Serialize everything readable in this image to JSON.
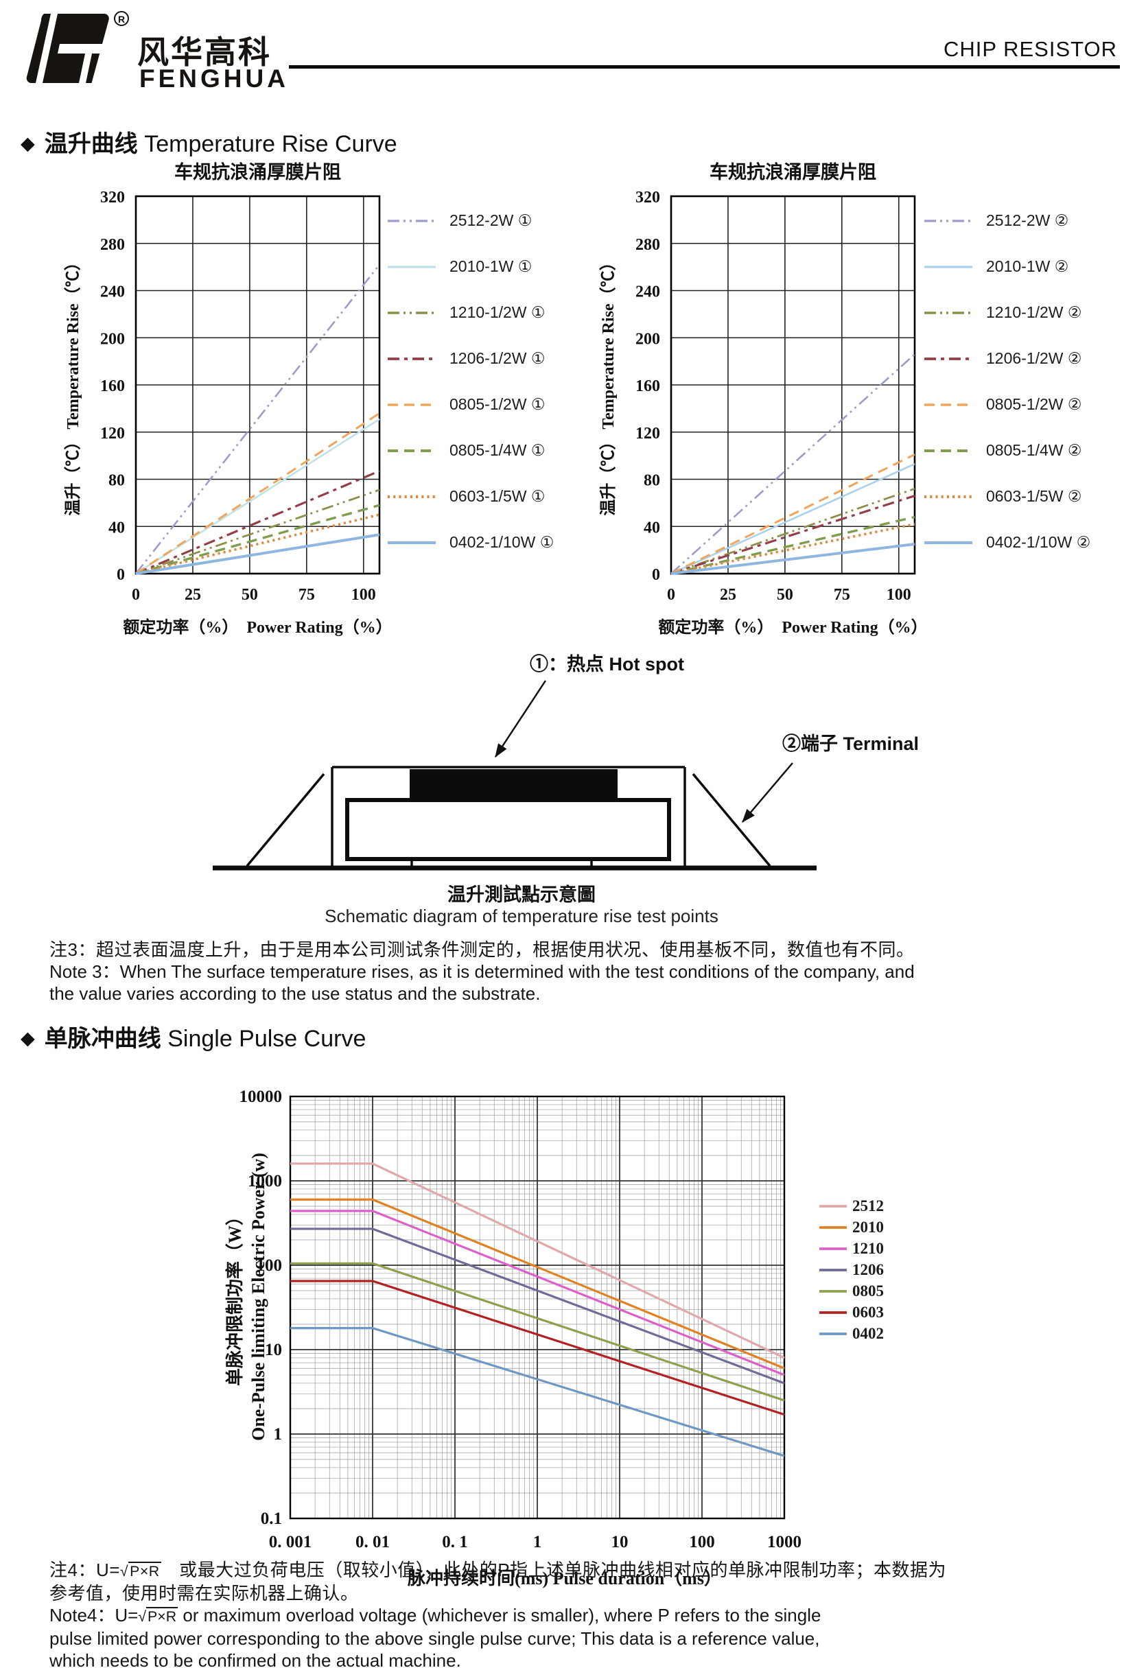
{
  "header": {
    "brand_cn": "风华高科",
    "brand_en": "FENGHUA",
    "registered": "®",
    "page_title": "CHIP RESISTOR"
  },
  "sections": {
    "s1_bullet": "◆",
    "s1_cn": "温升曲线",
    "s1_en": " Temperature Rise Curve",
    "s2_bullet": "◆",
    "s2_cn": "单脉冲曲线",
    "s2_en": " Single Pulse Curve"
  },
  "schematic": {
    "hotspot_label": "①：热点  Hot spot",
    "terminal_label": "②端子 Terminal",
    "caption_cn": "温升測試點示意圖",
    "caption_en": "Schematic diagram of temperature rise test points"
  },
  "notes": {
    "note3_cn": "注3：超过表面温度上升，由于是用本公司测试条件测定的，根据使用状况、使用基板不同，数值也有不同。",
    "note3_en_1": "Note 3：When The surface temperature rises, as it is determined with the test conditions of the company, and",
    "note3_en_2": "the value varies according to the use status and the substrate.",
    "note4_cn_1a": "注4：U=",
    "note4_sqrt": "P×R",
    "note4_cn_1b": "　或最大过负荷电压（取较小值），此处的P指上述单脉冲曲线相对应的单脉冲限制功率；本数据为",
    "note4_cn_2": "参考值，使用时需在实际机器上确认。",
    "note4_en_1a": "Note4：U=",
    "note4_en_1b": " or maximum overload voltage (whichever is smaller), where P refers to the single",
    "note4_en_2": "pulse limited power corresponding to the above single pulse curve; This data is a reference value,",
    "note4_en_3": "which needs to be confirmed on the actual machine."
  },
  "chart_data": [
    {
      "type": "line",
      "title": "车规抗浪涌厚膜片阻",
      "xlabel": "额定功率（%）　Power Rating（%）",
      "ylabel": "温升（℃）  Temperature Rise（℃）",
      "xlim": [
        0,
        107
      ],
      "ylim": [
        0,
        320
      ],
      "xticks": [
        0,
        25,
        50,
        75,
        100
      ],
      "yticks": [
        0,
        40,
        80,
        120,
        160,
        200,
        240,
        280,
        320
      ],
      "grid": true,
      "legend_position": "right",
      "series": [
        {
          "name": "2512-2W ①",
          "color": "#9c9ccb",
          "style": "dashdotdot",
          "width": 2.6,
          "x": [
            0,
            107
          ],
          "y": [
            0,
            262
          ]
        },
        {
          "name": "2010-1W ①",
          "color": "#bfe3e6",
          "style": "solid",
          "width": 2.6,
          "x": [
            0,
            107
          ],
          "y": [
            0,
            131
          ]
        },
        {
          "name": "1210-1/2W ①",
          "color": "#8e8e4a",
          "style": "dashdotdot",
          "width": 2.8,
          "x": [
            0,
            107
          ],
          "y": [
            0,
            71
          ]
        },
        {
          "name": "1206-1/2W ①",
          "color": "#943f48",
          "style": "dashdot",
          "width": 3.2,
          "x": [
            0,
            107
          ],
          "y": [
            0,
            87
          ]
        },
        {
          "name": "0805-1/2W ①",
          "color": "#f0a55c",
          "style": "dash",
          "width": 3.0,
          "x": [
            0,
            107
          ],
          "y": [
            0,
            136
          ]
        },
        {
          "name": "0805-1/4W ①",
          "color": "#7f9e4d",
          "style": "dash",
          "width": 3.4,
          "x": [
            0,
            107
          ],
          "y": [
            0,
            58
          ]
        },
        {
          "name": "0603-1/5W ①",
          "color": "#e18a3e",
          "style": "dot",
          "width": 3.6,
          "x": [
            0,
            107
          ],
          "y": [
            0,
            50
          ]
        },
        {
          "name": "0402-1/10W ①",
          "color": "#8db6e0",
          "style": "solid",
          "width": 4.0,
          "x": [
            0,
            107
          ],
          "y": [
            0,
            33
          ]
        }
      ]
    },
    {
      "type": "line",
      "title": "车规抗浪涌厚膜片阻",
      "xlabel": "额定功率（%）　Power Rating（%）",
      "ylabel": "温升（℃）  Temperature Rise（℃）",
      "xlim": [
        0,
        107
      ],
      "ylim": [
        0,
        320
      ],
      "xticks": [
        0,
        25,
        50,
        75,
        100
      ],
      "yticks": [
        0,
        40,
        80,
        120,
        160,
        200,
        240,
        280,
        320
      ],
      "grid": true,
      "legend_position": "right",
      "series": [
        {
          "name": "2512-2W ②",
          "color": "#9c9ccb",
          "style": "dashdotdot",
          "width": 2.6,
          "x": [
            0,
            107
          ],
          "y": [
            0,
            186
          ]
        },
        {
          "name": "2010-1W ②",
          "color": "#a9d3ed",
          "style": "solid",
          "width": 2.6,
          "x": [
            0,
            107
          ],
          "y": [
            0,
            93
          ]
        },
        {
          "name": "1210-1/2W ②",
          "color": "#8e8e4a",
          "style": "dashdotdot",
          "width": 2.8,
          "x": [
            0,
            107
          ],
          "y": [
            0,
            72
          ]
        },
        {
          "name": "1206-1/2W ②",
          "color": "#943f48",
          "style": "dashdot",
          "width": 3.2,
          "x": [
            0,
            107
          ],
          "y": [
            0,
            66
          ]
        },
        {
          "name": "0805-1/2W ②",
          "color": "#f0a55c",
          "style": "dash",
          "width": 3.0,
          "x": [
            0,
            107
          ],
          "y": [
            0,
            101
          ]
        },
        {
          "name": "0805-1/4W ②",
          "color": "#7f9e4d",
          "style": "dash",
          "width": 3.4,
          "x": [
            0,
            107
          ],
          "y": [
            0,
            48
          ]
        },
        {
          "name": "0603-1/5W ②",
          "color": "#e18a3e",
          "style": "dot",
          "width": 3.6,
          "x": [
            0,
            107
          ],
          "y": [
            0,
            42
          ]
        },
        {
          "name": "0402-1/10W ②",
          "color": "#8db6e0",
          "style": "solid",
          "width": 4.0,
          "x": [
            0,
            107
          ],
          "y": [
            0,
            25
          ]
        }
      ]
    },
    {
      "type": "line",
      "log_x": true,
      "log_y": true,
      "title": "",
      "xlabel": "脉冲持续时间(ms) Pulse duration（ms）",
      "ylabel_cn": "单脉冲限制功率（W）",
      "ylabel_en": "One-Pulse limiting Electric Power (w)",
      "xlim": [
        0.001,
        1000
      ],
      "ylim": [
        0.1,
        10000
      ],
      "xticks": [
        0.001,
        0.01,
        0.1,
        1,
        10,
        100,
        1000
      ],
      "xtick_labels": [
        "0. 001",
        "0. 01",
        "0. 1",
        "1",
        "10",
        "100",
        "1000"
      ],
      "yticks": [
        10000,
        1000,
        100,
        10,
        1,
        0.1
      ],
      "ytick_labels": [
        "10000",
        "1000",
        "100",
        "10",
        "1",
        "0.1"
      ],
      "grid": "log-minor",
      "legend_position": "right",
      "series": [
        {
          "name": "2512",
          "color": "#e0a9a9",
          "style": "solid",
          "width": 3.2,
          "x": [
            0.001,
            0.01,
            1000
          ],
          "y": [
            1600,
            1600,
            8
          ]
        },
        {
          "name": "2010",
          "color": "#e08222",
          "style": "solid",
          "width": 3.2,
          "x": [
            0.001,
            0.01,
            1000
          ],
          "y": [
            600,
            600,
            6
          ]
        },
        {
          "name": "1210",
          "color": "#dd60c8",
          "style": "solid",
          "width": 3.2,
          "x": [
            0.001,
            0.01,
            1000
          ],
          "y": [
            440,
            440,
            5
          ]
        },
        {
          "name": "1206",
          "color": "#6f6b99",
          "style": "solid",
          "width": 3.2,
          "x": [
            0.001,
            0.01,
            1000
          ],
          "y": [
            270,
            270,
            4
          ]
        },
        {
          "name": "0805",
          "color": "#8da04f",
          "style": "solid",
          "width": 3.2,
          "x": [
            0.001,
            0.01,
            1000
          ],
          "y": [
            105,
            105,
            2.5
          ]
        },
        {
          "name": "0603",
          "color": "#b22222",
          "style": "solid",
          "width": 3.2,
          "x": [
            0.001,
            0.01,
            1000
          ],
          "y": [
            65,
            65,
            1.7
          ]
        },
        {
          "name": "0402",
          "color": "#6d98c4",
          "style": "solid",
          "width": 3.2,
          "x": [
            0.001,
            0.01,
            1000
          ],
          "y": [
            18,
            18,
            0.55
          ]
        }
      ]
    }
  ]
}
